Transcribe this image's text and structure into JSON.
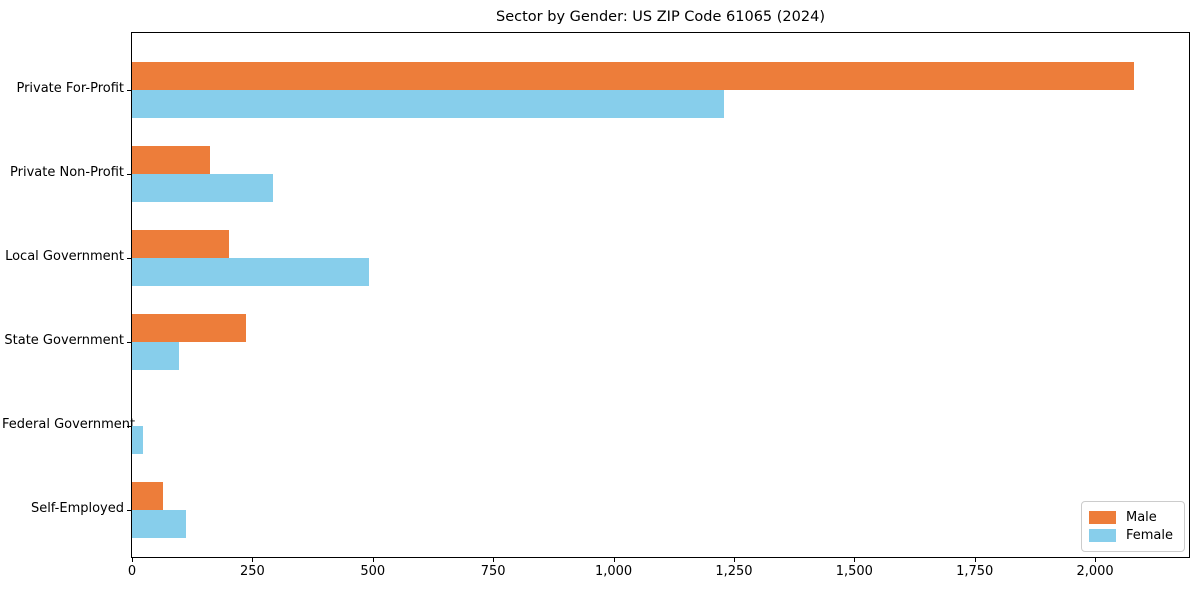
{
  "figure": {
    "title": "Sector by Gender: US ZIP Code 61065 (2024)"
  },
  "chart_data": {
    "type": "bar",
    "orientation": "horizontal",
    "title": "Sector by Gender: US ZIP Code 61065 (2024)",
    "xlabel": "",
    "ylabel": "",
    "categories": [
      "Private For-Profit",
      "Private Non-Profit",
      "Local Government",
      "State Government",
      "Federal Government",
      "Self-Employed"
    ],
    "series": [
      {
        "name": "Male",
        "color": "#ED7D3A",
        "values": [
          2080,
          162,
          201,
          237,
          0,
          65
        ]
      },
      {
        "name": "Female",
        "color": "#87CEEB",
        "values": [
          1229,
          292,
          492,
          98,
          22,
          112
        ]
      }
    ],
    "xlim": [
      0,
      2195
    ],
    "xticks": {
      "values": [
        0,
        250,
        500,
        750,
        1000,
        1250,
        1500,
        1750,
        2000
      ],
      "labels": [
        "0",
        "250",
        "500",
        "750",
        "1,000",
        "1,250",
        "1,500",
        "1,750",
        "2,000"
      ]
    },
    "grid": false,
    "legend": {
      "position": "lower right",
      "entries": [
        "Male",
        "Female"
      ]
    }
  }
}
